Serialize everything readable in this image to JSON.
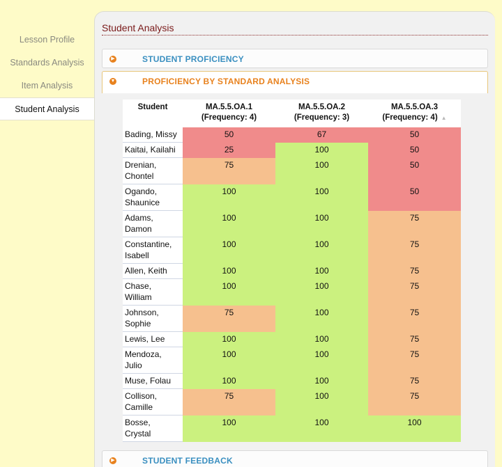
{
  "sidebar": {
    "items": [
      {
        "label": "Lesson Profile",
        "active": false
      },
      {
        "label": "Standards Analysis",
        "active": false
      },
      {
        "label": "Item Analysis",
        "active": false
      },
      {
        "label": "Student Analysis",
        "active": true
      }
    ]
  },
  "panel": {
    "title": "Student Analysis",
    "sections": {
      "proficiency": "STUDENT PROFICIENCY",
      "by_standard": "PROFICIENCY BY STANDARD ANALYSIS",
      "feedback": "STUDENT FEEDBACK"
    }
  },
  "colors": {
    "red": "#f08b8b",
    "orange": "#f6c08e",
    "green": "#cbf17f",
    "accent_orange": "#e8821e",
    "accent_blue": "#3a8fc0"
  },
  "table": {
    "headers": [
      {
        "line1": "Student",
        "line2": ""
      },
      {
        "line1": "MA.5.5.OA.1",
        "line2": "(Frequency: 4)"
      },
      {
        "line1": "MA.5.5.OA.2",
        "line2": "(Frequency: 3)"
      },
      {
        "line1": "MA.5.5.OA.3",
        "line2": "(Frequency: 4)"
      }
    ],
    "rows": [
      {
        "name": [
          "Bading, Missy"
        ],
        "scores": [
          50,
          67,
          50
        ],
        "colors": [
          "red",
          "red",
          "red"
        ]
      },
      {
        "name": [
          "Kaitai, Kailahi"
        ],
        "scores": [
          25,
          100,
          50
        ],
        "colors": [
          "red",
          "green",
          "red"
        ]
      },
      {
        "name": [
          "Drenian,",
          "Chontel"
        ],
        "scores": [
          75,
          100,
          50
        ],
        "colors": [
          "orange",
          "green",
          "red"
        ]
      },
      {
        "name": [
          "Ogando,",
          "Shaunice"
        ],
        "scores": [
          100,
          100,
          50
        ],
        "colors": [
          "green",
          "green",
          "red"
        ]
      },
      {
        "name": [
          "Adams,",
          "Damon"
        ],
        "scores": [
          100,
          100,
          75
        ],
        "colors": [
          "green",
          "green",
          "orange"
        ]
      },
      {
        "name": [
          "Constantine,",
          "Isabell"
        ],
        "scores": [
          100,
          100,
          75
        ],
        "colors": [
          "green",
          "green",
          "orange"
        ]
      },
      {
        "name": [
          "Allen, Keith"
        ],
        "scores": [
          100,
          100,
          75
        ],
        "colors": [
          "green",
          "green",
          "orange"
        ]
      },
      {
        "name": [
          "Chase,",
          "William"
        ],
        "scores": [
          100,
          100,
          75
        ],
        "colors": [
          "green",
          "green",
          "orange"
        ]
      },
      {
        "name": [
          "Johnson,",
          "Sophie"
        ],
        "scores": [
          75,
          100,
          75
        ],
        "colors": [
          "orange",
          "green",
          "orange"
        ]
      },
      {
        "name": [
          "Lewis, Lee"
        ],
        "scores": [
          100,
          100,
          75
        ],
        "colors": [
          "green",
          "green",
          "orange"
        ]
      },
      {
        "name": [
          "Mendoza,",
          "Julio"
        ],
        "scores": [
          100,
          100,
          75
        ],
        "colors": [
          "green",
          "green",
          "orange"
        ]
      },
      {
        "name": [
          "Muse, Folau"
        ],
        "scores": [
          100,
          100,
          75
        ],
        "colors": [
          "green",
          "green",
          "orange"
        ]
      },
      {
        "name": [
          "Collison,",
          "Camille"
        ],
        "scores": [
          75,
          100,
          75
        ],
        "colors": [
          "orange",
          "green",
          "orange"
        ]
      },
      {
        "name": [
          "Bosse,",
          "Crystal"
        ],
        "scores": [
          100,
          100,
          100
        ],
        "colors": [
          "green",
          "green",
          "green"
        ]
      }
    ]
  }
}
